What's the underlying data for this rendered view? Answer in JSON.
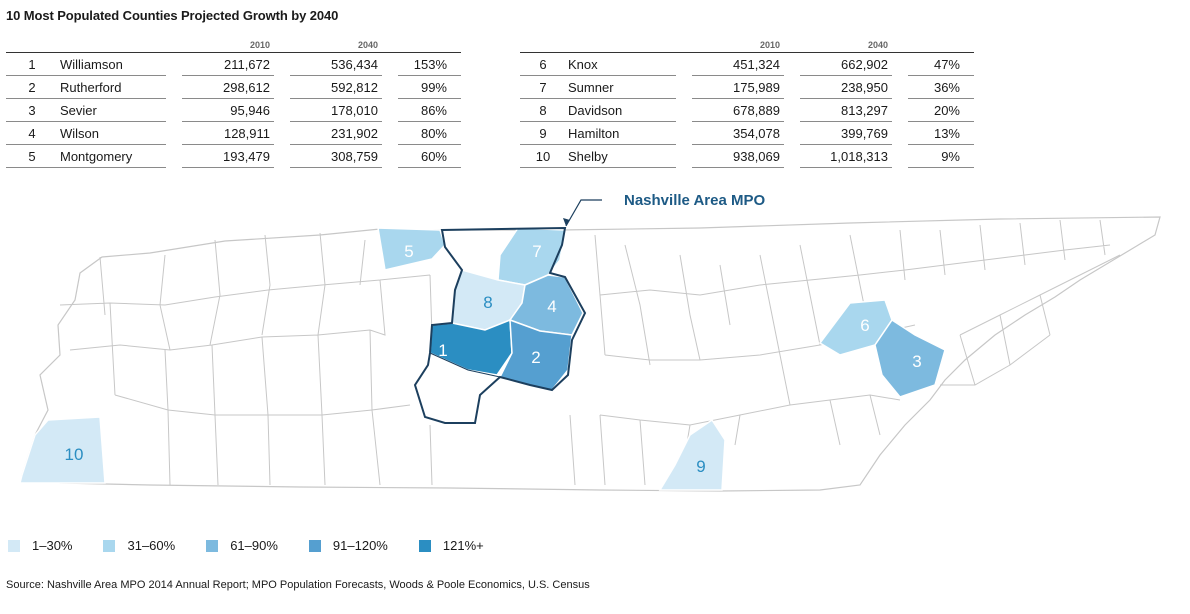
{
  "title": "10 Most Populated Counties Projected Growth by 2040",
  "table": {
    "col_2010": "2010",
    "col_2040": "2040",
    "left": [
      {
        "rank": "1",
        "county": "Williamson",
        "pop2010": "211,672",
        "pop2040": "536,434",
        "growth": "153%"
      },
      {
        "rank": "2",
        "county": "Rutherford",
        "pop2010": "298,612",
        "pop2040": "592,812",
        "growth": "99%"
      },
      {
        "rank": "3",
        "county": "Sevier",
        "pop2010": "95,946",
        "pop2040": "178,010",
        "growth": "86%"
      },
      {
        "rank": "4",
        "county": "Wilson",
        "pop2010": "128,911",
        "pop2040": "231,902",
        "growth": "80%"
      },
      {
        "rank": "5",
        "county": "Montgomery",
        "pop2010": "193,479",
        "pop2040": "308,759",
        "growth": "60%"
      }
    ],
    "right": [
      {
        "rank": "6",
        "county": "Knox",
        "pop2010": "451,324",
        "pop2040": "662,902",
        "growth": "47%"
      },
      {
        "rank": "7",
        "county": "Sumner",
        "pop2010": "175,989",
        "pop2040": "238,950",
        "growth": "36%"
      },
      {
        "rank": "8",
        "county": "Davidson",
        "pop2010": "678,889",
        "pop2040": "813,297",
        "growth": "20%"
      },
      {
        "rank": "9",
        "county": "Hamilton",
        "pop2010": "354,078",
        "pop2040": "399,769",
        "growth": "13%"
      },
      {
        "rank": "10",
        "county": "Shelby",
        "pop2010": "938,069",
        "pop2040": "1,018,313",
        "growth": "9%"
      }
    ]
  },
  "map": {
    "mpo_label": "Nashville Area MPO",
    "county_numbers": [
      "1",
      "2",
      "3",
      "4",
      "5",
      "6",
      "7",
      "8",
      "9",
      "10"
    ]
  },
  "legend": [
    {
      "label": "1–30%",
      "color": "#d3e9f6"
    },
    {
      "label": "31–60%",
      "color": "#a9d7ee"
    },
    {
      "label": "61–90%",
      "color": "#7dbadf"
    },
    {
      "label": "91–120%",
      "color": "#559fd0"
    },
    {
      "label": "121%+",
      "color": "#2b8ec2"
    }
  ],
  "colors": {
    "outline": "#1c3f5e",
    "mpo_label": "#1d5a85",
    "county_line": "#c7c7c7"
  },
  "source": "Source: Nashville Area MPO 2014 Annual Report; MPO Population Forecasts, Woods & Poole Economics, U.S. Census"
}
